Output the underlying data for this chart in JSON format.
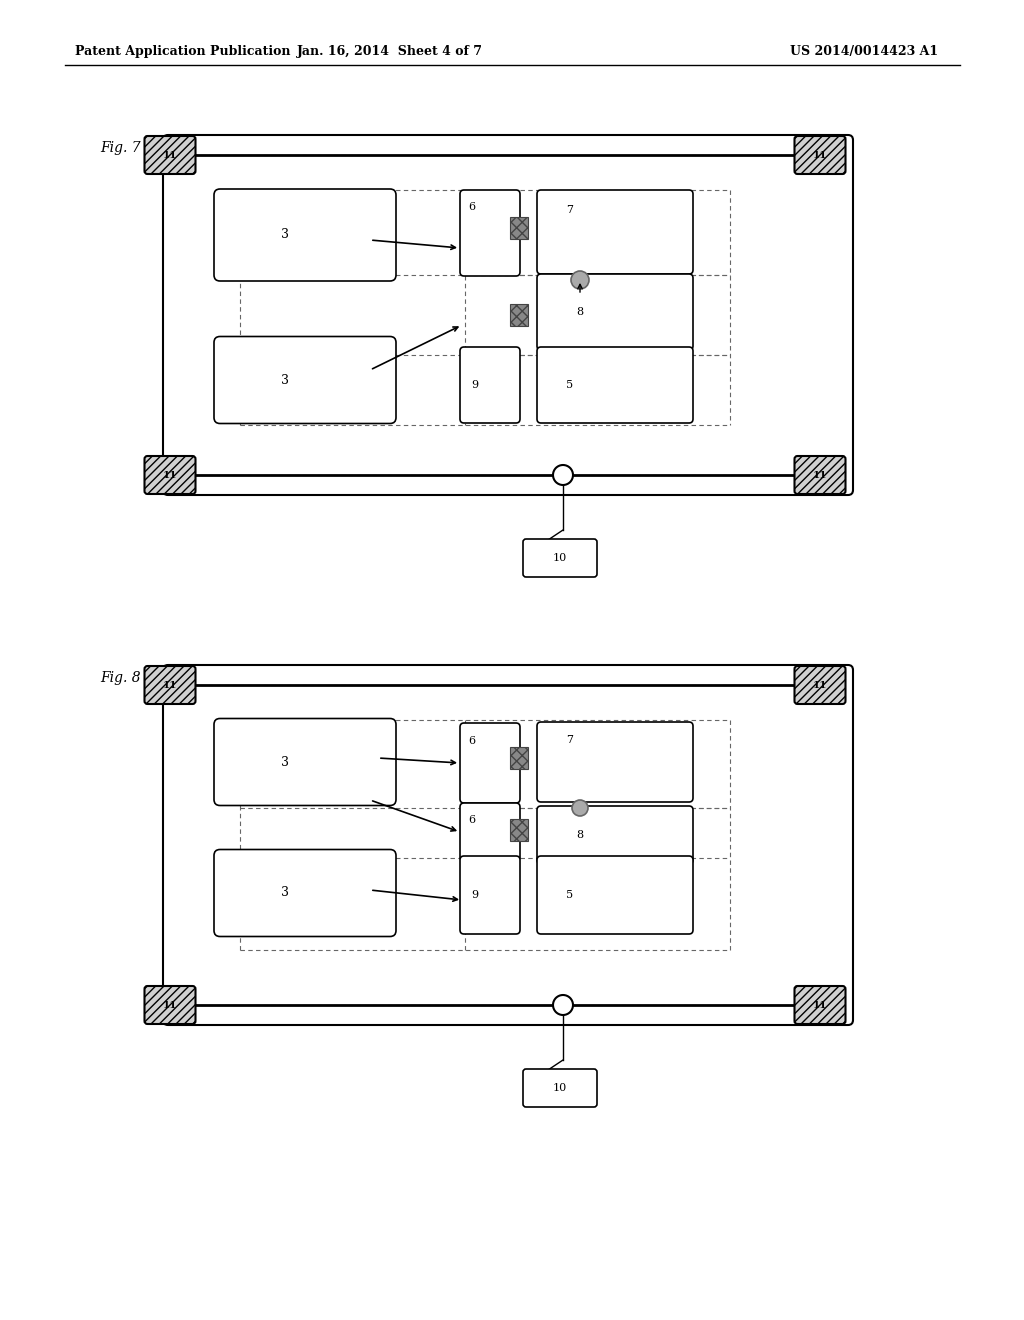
{
  "header_left": "Patent Application Publication",
  "header_mid": "Jan. 16, 2014  Sheet 4 of 7",
  "header_right": "US 2014/0014423 A1",
  "fig7_label": "Fig. 7",
  "fig8_label": "Fig. 8",
  "bg_color": "#ffffff"
}
